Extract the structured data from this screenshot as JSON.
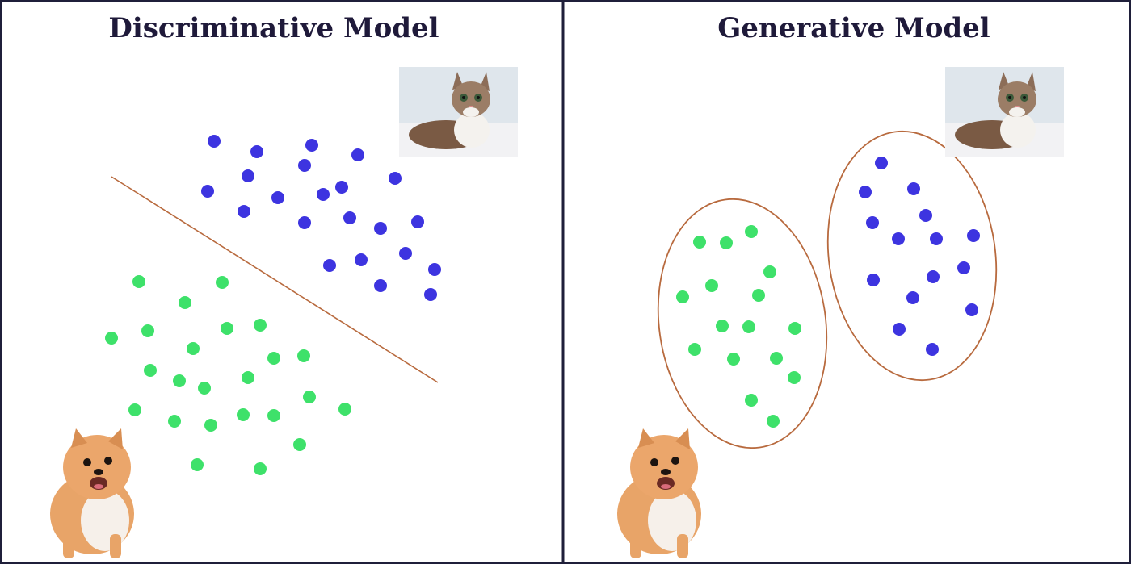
{
  "colors": {
    "frame": "#1f1f3a",
    "title": "#1f1a3a",
    "cat_class": "#3d34e0",
    "dog_class": "#3ee16a",
    "boundary": "#b86a3e"
  },
  "panels": [
    {
      "title": "Discriminative Model",
      "cat_icon": "cat-photo",
      "dog_icon": "dog-photo",
      "boundary_type": "line"
    },
    {
      "title": "Generative Model",
      "cat_icon": "cat-photo",
      "dog_icon": "dog-photo",
      "boundary_type": "ellipses"
    }
  ]
}
